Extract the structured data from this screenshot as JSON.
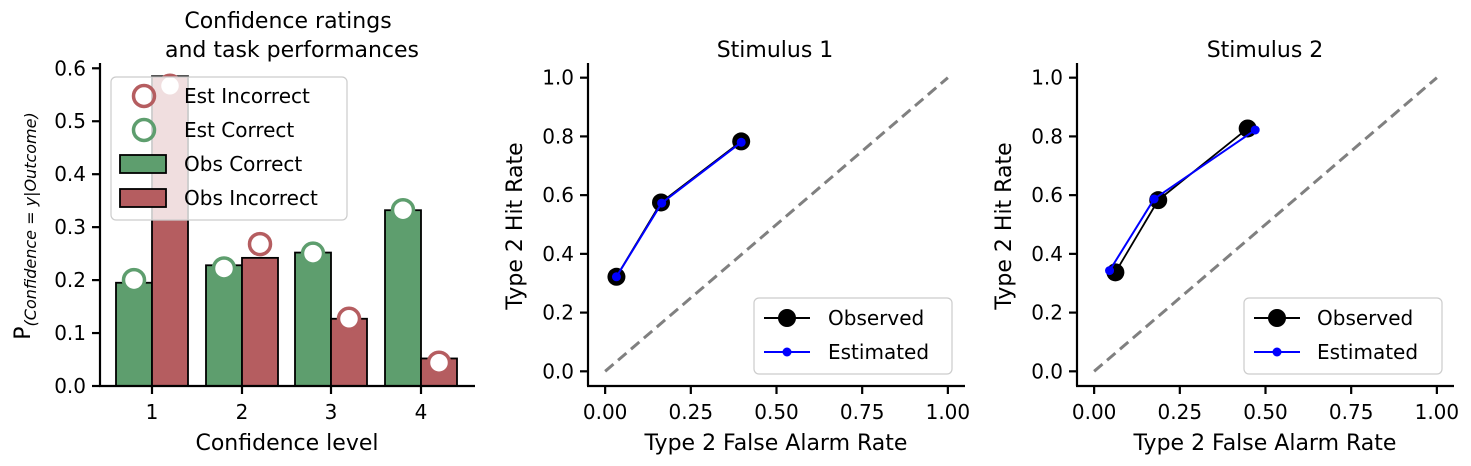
{
  "colors": {
    "obs_correct": "#5e9e6e",
    "obs_incorrect": "#b55d60",
    "observed_line": "#000000",
    "estimated_line": "#0000ff",
    "chance_line": "#808080"
  },
  "chart_data": [
    {
      "type": "bar",
      "title_line1": "Confidence ratings",
      "title_line2": "and task performances",
      "xlabel": "Confidence level",
      "ylabel_prefix": "P",
      "ylabel_subscript": "(Confidence = y|Outcome)",
      "categories": [
        "1",
        "2",
        "3",
        "4"
      ],
      "ylim": [
        0,
        0.61
      ],
      "yticks": [
        "0.0",
        "0.1",
        "0.2",
        "0.3",
        "0.4",
        "0.5",
        "0.6"
      ],
      "series": [
        {
          "name": "Obs Correct",
          "kind": "bar",
          "values": [
            0.195,
            0.228,
            0.252,
            0.332
          ]
        },
        {
          "name": "Obs Incorrect",
          "kind": "bar",
          "values": [
            0.585,
            0.242,
            0.127,
            0.052
          ]
        },
        {
          "name": "Est Incorrect",
          "kind": "marker",
          "values": [
            0.567,
            0.268,
            0.127,
            0.044
          ]
        },
        {
          "name": "Est Correct",
          "kind": "marker",
          "values": [
            0.2,
            0.222,
            0.25,
            0.332
          ]
        }
      ],
      "legend": [
        "Est Incorrect",
        "Est Correct",
        "Obs Correct",
        "Obs Incorrect"
      ],
      "legend_position": "upper-left"
    },
    {
      "type": "line",
      "title": "Stimulus 1",
      "xlabel": "Type 2 False Alarm Rate",
      "ylabel": "Type 2 Hit Rate",
      "xlim": [
        -0.05,
        1.05
      ],
      "ylim": [
        -0.05,
        1.05
      ],
      "xticks": [
        "0.00",
        "0.25",
        "0.50",
        "0.75",
        "1.00"
      ],
      "yticks": [
        "0.0",
        "0.2",
        "0.4",
        "0.6",
        "0.8",
        "1.0"
      ],
      "series": [
        {
          "name": "Observed",
          "x": [
            0.033,
            0.163,
            0.397
          ],
          "y": [
            0.322,
            0.575,
            0.783
          ]
        },
        {
          "name": "Estimated",
          "x": [
            0.033,
            0.165,
            0.397
          ],
          "y": [
            0.322,
            0.573,
            0.78
          ]
        }
      ],
      "legend_position": "lower-right"
    },
    {
      "type": "line",
      "title": "Stimulus 2",
      "xlabel": "Type 2 False Alarm Rate",
      "ylabel": "Type 2 Hit Rate",
      "xlim": [
        -0.05,
        1.05
      ],
      "ylim": [
        -0.05,
        1.05
      ],
      "xticks": [
        "0.00",
        "0.25",
        "0.50",
        "0.75",
        "1.00"
      ],
      "yticks": [
        "0.0",
        "0.2",
        "0.4",
        "0.6",
        "0.8",
        "1.0"
      ],
      "series": [
        {
          "name": "Observed",
          "x": [
            0.062,
            0.187,
            0.448
          ],
          "y": [
            0.337,
            0.583,
            0.827
          ]
        },
        {
          "name": "Estimated",
          "x": [
            0.045,
            0.175,
            0.47
          ],
          "y": [
            0.343,
            0.587,
            0.822
          ]
        }
      ],
      "legend_position": "lower-right"
    }
  ]
}
